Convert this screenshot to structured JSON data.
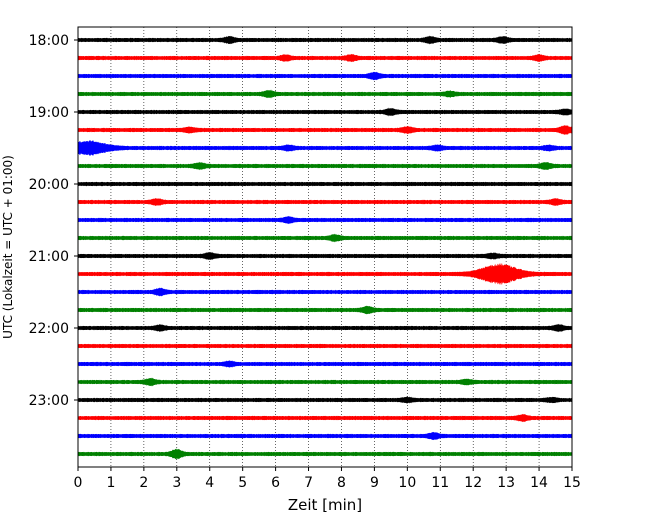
{
  "chart_data": {
    "type": "line",
    "title": "",
    "xlabel": "Zeit  [min]",
    "ylabel": "UTC (Lokalzeit = UTC + 01:00)",
    "xlim": [
      0,
      15
    ],
    "x_ticks": [
      "0",
      "1",
      "2",
      "3",
      "4",
      "5",
      "6",
      "7",
      "8",
      "9",
      "10",
      "11",
      "12",
      "13",
      "14",
      "15"
    ],
    "y_tick_labels": [
      "18:00",
      "19:00",
      "20:00",
      "21:00",
      "22:00",
      "23:00"
    ],
    "grid": "vertical dotted at each minute",
    "line_colors": [
      "#000000",
      "#ff0000",
      "#0000ff",
      "#008000"
    ],
    "series": [
      {
        "start": "18:00",
        "color": "#000000",
        "events": [
          [
            4.6,
            1.0
          ],
          [
            10.7,
            1.0
          ],
          [
            12.9,
            1.0
          ]
        ]
      },
      {
        "start": "18:15",
        "color": "#ff0000",
        "events": [
          [
            6.3,
            0.9
          ],
          [
            8.3,
            1.0
          ],
          [
            14.0,
            0.9
          ]
        ]
      },
      {
        "start": "18:30",
        "color": "#0000ff",
        "events": [
          [
            9.0,
            1.1
          ]
        ]
      },
      {
        "start": "18:45",
        "color": "#008000",
        "events": [
          [
            5.8,
            1.1
          ],
          [
            11.3,
            0.8
          ]
        ]
      },
      {
        "start": "19:00",
        "color": "#000000",
        "events": [
          [
            9.5,
            1.0
          ],
          [
            14.8,
            0.8
          ]
        ]
      },
      {
        "start": "19:15",
        "color": "#ff0000",
        "events": [
          [
            3.4,
            0.8
          ],
          [
            10.0,
            1.0
          ],
          [
            14.8,
            1.4
          ]
        ]
      },
      {
        "start": "19:30",
        "color": "#0000ff",
        "events": [
          [
            0.3,
            2.6
          ],
          [
            6.4,
            0.8
          ],
          [
            10.9,
            0.8
          ],
          [
            14.3,
            0.8
          ]
        ]
      },
      {
        "start": "19:45",
        "color": "#008000",
        "events": [
          [
            3.7,
            1.0
          ],
          [
            14.2,
            1.0
          ]
        ]
      },
      {
        "start": "20:00",
        "color": "#000000",
        "events": []
      },
      {
        "start": "20:15",
        "color": "#ff0000",
        "events": [
          [
            2.4,
            1.0
          ],
          [
            14.5,
            0.9
          ]
        ]
      },
      {
        "start": "20:30",
        "color": "#0000ff",
        "events": [
          [
            6.4,
            0.9
          ]
        ]
      },
      {
        "start": "20:45",
        "color": "#008000",
        "events": [
          [
            7.8,
            1.0
          ]
        ]
      },
      {
        "start": "21:00",
        "color": "#000000",
        "events": [
          [
            4.0,
            1.0
          ],
          [
            12.6,
            0.8
          ]
        ]
      },
      {
        "start": "21:15",
        "color": "#ff0000",
        "events": [
          [
            12.8,
            4.0
          ]
        ]
      },
      {
        "start": "21:30",
        "color": "#0000ff",
        "events": [
          [
            2.5,
            1.1
          ]
        ]
      },
      {
        "start": "21:45",
        "color": "#008000",
        "events": [
          [
            8.8,
            1.1
          ]
        ]
      },
      {
        "start": "22:00",
        "color": "#000000",
        "events": [
          [
            2.5,
            0.8
          ],
          [
            14.6,
            0.9
          ]
        ]
      },
      {
        "start": "22:15",
        "color": "#ff0000",
        "events": []
      },
      {
        "start": "22:30",
        "color": "#0000ff",
        "events": [
          [
            4.6,
            0.7
          ]
        ]
      },
      {
        "start": "22:45",
        "color": "#008000",
        "events": [
          [
            2.2,
            1.0
          ],
          [
            11.8,
            0.7
          ]
        ]
      },
      {
        "start": "23:00",
        "color": "#000000",
        "events": [
          [
            10.0,
            0.7
          ],
          [
            14.4,
            0.6
          ]
        ]
      },
      {
        "start": "23:15",
        "color": "#ff0000",
        "events": [
          [
            13.5,
            1.0
          ]
        ]
      },
      {
        "start": "23:30",
        "color": "#0000ff",
        "events": [
          [
            10.8,
            1.0
          ]
        ]
      },
      {
        "start": "23:45",
        "color": "#008000",
        "events": [
          [
            3.0,
            1.6
          ]
        ]
      }
    ]
  }
}
